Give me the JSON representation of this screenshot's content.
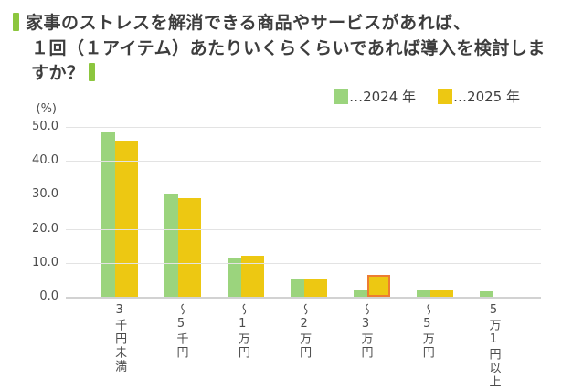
{
  "title": {
    "line1": "家事のストレスを解消できる商品やサービスがあれば、",
    "line2": "１回（１アイテム）あたりいくらくらいであれば導入を検討しますか？"
  },
  "legend": [
    {
      "label": "…2024 年",
      "color": "#9bd47d"
    },
    {
      "label": "…2025 年",
      "color": "#edc812"
    }
  ],
  "colors": {
    "title_marker": "#8cc63e",
    "bar_2024": "#9bd47d",
    "bar_2025": "#edc812",
    "highlight_border": "#ed7d31",
    "gridline": "#e3e3e3",
    "axis_text": "#4c4c4c"
  },
  "chart_data": {
    "type": "bar",
    "title": "家事のストレスを解消できる商品やサービスがあれば、１回（１アイテム）あたりいくらくらいであれば導入を検討しますか？",
    "unit_label": "(%)",
    "categories": [
      "3千円未満",
      "～5千円",
      "～1万円",
      "～2万円",
      "～3万円",
      "～5万円",
      "5万1円以上"
    ],
    "series": [
      {
        "name": "2024年",
        "color": "#9bd47d",
        "values": [
          48.5,
          30.5,
          11.5,
          5.0,
          2.0,
          2.0,
          1.5
        ]
      },
      {
        "name": "2025年",
        "color": "#edc812",
        "values": [
          46.0,
          29.0,
          12.0,
          5.0,
          6.5,
          2.0,
          0
        ]
      }
    ],
    "highlight": {
      "series": "2025年",
      "category": "～3万円",
      "border_color": "#ed7d31"
    },
    "ylim": [
      0,
      50
    ],
    "yticks": [
      "50.0",
      "40.0",
      "30.0",
      "20.0",
      "10.0",
      "0.0"
    ],
    "grid": true,
    "legend_position": "top-right"
  }
}
